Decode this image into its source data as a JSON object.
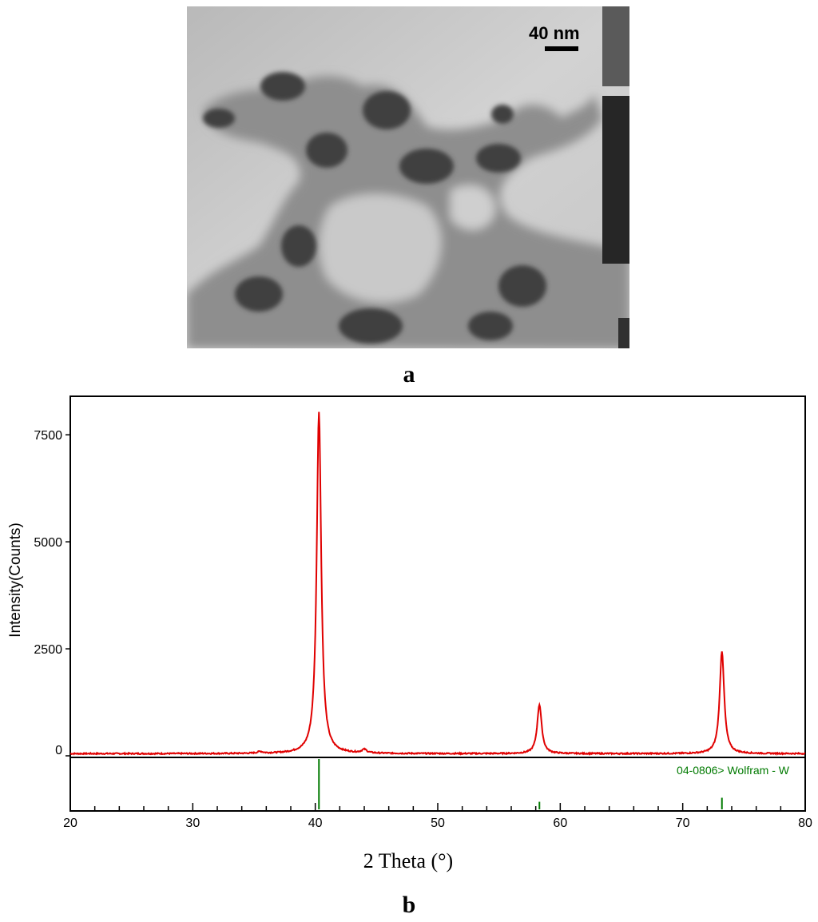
{
  "panels": {
    "a_label": "a",
    "b_label": "b"
  },
  "micrograph": {
    "scale_bar_text": "40 nm"
  },
  "colors": {
    "pattern": "#e00000",
    "reference": "#007a00"
  },
  "chart_data": {
    "type": "line",
    "xlabel": "2 Theta (°)",
    "ylabel": "Intensity(Counts)",
    "xlim": [
      20,
      80
    ],
    "ylim": [
      0,
      8400
    ],
    "x_ticks": [
      20,
      30,
      40,
      50,
      60,
      70,
      80
    ],
    "y_ticks": [
      0,
      2500,
      5000,
      7500
    ],
    "grid": false,
    "series": [
      {
        "type": "xrd-pattern",
        "baseline": 50,
        "peaks": [
          {
            "two_theta": 40.3,
            "intensity": 8000
          },
          {
            "two_theta": 58.3,
            "intensity": 1150
          },
          {
            "two_theta": 73.2,
            "intensity": 2400
          },
          {
            "two_theta": 44.0,
            "intensity": 80
          },
          {
            "two_theta": 35.5,
            "intensity": 40
          }
        ]
      }
    ],
    "reference": {
      "label": "04-0806> Wolfram - W",
      "lines": [
        {
          "two_theta": 40.3,
          "relative_intensity": 100
        },
        {
          "two_theta": 58.3,
          "relative_intensity": 15
        },
        {
          "two_theta": 73.2,
          "relative_intensity": 23
        }
      ]
    }
  }
}
